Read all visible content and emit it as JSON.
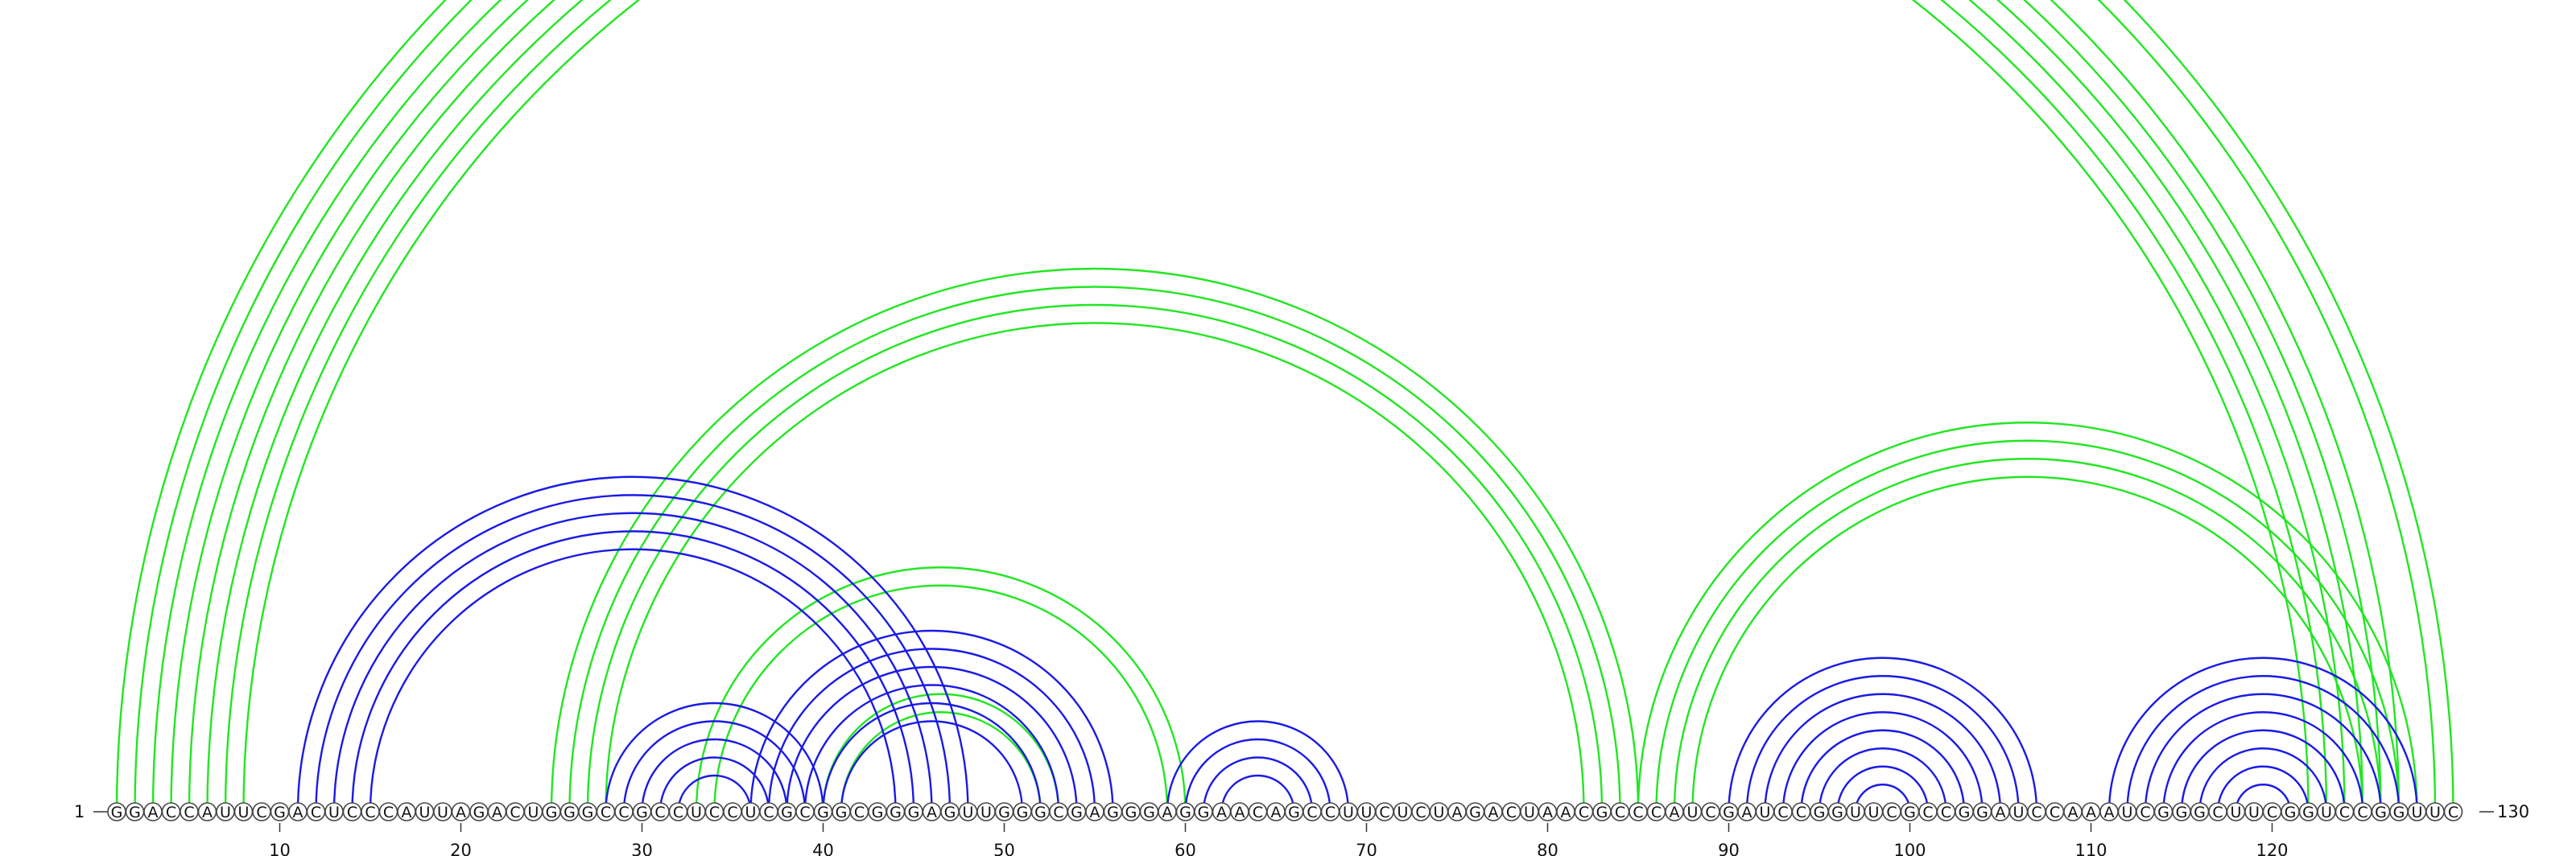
{
  "diagram": {
    "type": "rna-arc-diagram",
    "sequence": "GGACCAUUCGACUCCCAUUAGACUGGGCCGCCUCCUCGCGGCGGGAGUUGGGCGAGGGAGGAACAGCCUUCUCUAGACUAACGCCCAUCGAUCCGGUUCGCCGGAUCCAAAUCGGGCUUCGGUCCGGUUC",
    "start_label": "1",
    "end_label": "130",
    "tick_positions": [
      10,
      20,
      30,
      40,
      50,
      60,
      70,
      80,
      90,
      100,
      110,
      120
    ],
    "tick_labels": [
      "10",
      "20",
      "30",
      "40",
      "50",
      "60",
      "70",
      "80",
      "90",
      "100",
      "110",
      "120"
    ],
    "colors": {
      "green": "#22e622",
      "blue": "#1a1ae6",
      "nucleotide_stroke": "#444444",
      "text": "#111111"
    },
    "green_pairs": [
      [
        1,
        130
      ],
      [
        2,
        129
      ],
      [
        3,
        127
      ],
      [
        4,
        126
      ],
      [
        5,
        125
      ],
      [
        6,
        124
      ],
      [
        7,
        123
      ],
      [
        8,
        122
      ],
      [
        25,
        85
      ],
      [
        26,
        84
      ],
      [
        27,
        83
      ],
      [
        28,
        82
      ],
      [
        33,
        60
      ],
      [
        34,
        59
      ],
      [
        40,
        53
      ],
      [
        41,
        52
      ],
      [
        85,
        128
      ],
      [
        86,
        127
      ],
      [
        87,
        126
      ],
      [
        88,
        125
      ]
    ],
    "blue_pairs": [
      [
        11,
        48
      ],
      [
        12,
        47
      ],
      [
        13,
        46
      ],
      [
        14,
        45
      ],
      [
        15,
        44
      ],
      [
        28,
        40
      ],
      [
        29,
        39
      ],
      [
        30,
        38
      ],
      [
        31,
        37
      ],
      [
        32,
        36
      ],
      [
        36,
        56
      ],
      [
        37,
        55
      ],
      [
        38,
        54
      ],
      [
        39,
        53
      ],
      [
        40,
        52
      ],
      [
        41,
        51
      ],
      [
        59,
        69
      ],
      [
        60,
        68
      ],
      [
        61,
        67
      ],
      [
        62,
        66
      ],
      [
        90,
        107
      ],
      [
        91,
        106
      ],
      [
        92,
        105
      ],
      [
        93,
        104
      ],
      [
        94,
        103
      ],
      [
        95,
        102
      ],
      [
        96,
        101
      ],
      [
        97,
        100
      ],
      [
        111,
        128
      ],
      [
        112,
        127
      ],
      [
        113,
        126
      ],
      [
        114,
        125
      ],
      [
        115,
        124
      ],
      [
        116,
        123
      ],
      [
        117,
        122
      ],
      [
        118,
        121
      ]
    ]
  }
}
